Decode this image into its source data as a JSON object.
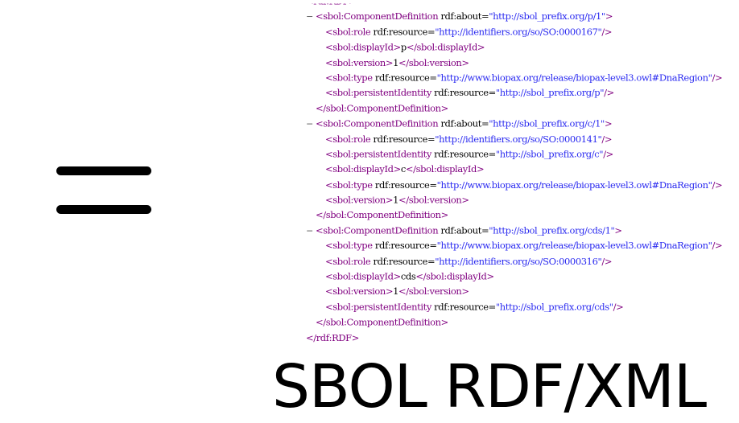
{
  "caption": "SBOL RDF/XML",
  "xml": {
    "toggle": "−",
    "rdf_open": "<rdf:RDF>",
    "rdf_close": "</rdf:RDF>",
    "cd_open_tag": "<sbol:ComponentDefinition",
    "cd_close": "</sbol:ComponentDefinition>",
    "components": [
      {
        "about": "http://sbol_prefix.org/p/1",
        "children": [
          {
            "tag": "sbol:role",
            "attr": "rdf:resource",
            "value": "http://identifiers.org/so/SO:0000167"
          },
          {
            "tag": "sbol:displayId",
            "text": "p"
          },
          {
            "tag": "sbol:version",
            "text": "1"
          },
          {
            "tag": "sbol:type",
            "attr": "rdf:resource",
            "value": "http://www.biopax.org/release/biopax-level3.owl#DnaRegion"
          },
          {
            "tag": "sbol:persistentIdentity",
            "attr": "rdf:resource",
            "value": "http://sbol_prefix.org/p"
          }
        ]
      },
      {
        "about": "http://sbol_prefix.org/c/1",
        "children": [
          {
            "tag": "sbol:role",
            "attr": "rdf:resource",
            "value": "http://identifiers.org/so/SO:0000141"
          },
          {
            "tag": "sbol:persistentIdentity",
            "attr": "rdf:resource",
            "value": "http://sbol_prefix.org/c"
          },
          {
            "tag": "sbol:displayId",
            "text": "c"
          },
          {
            "tag": "sbol:type",
            "attr": "rdf:resource",
            "value": "http://www.biopax.org/release/biopax-level3.owl#DnaRegion"
          },
          {
            "tag": "sbol:version",
            "text": "1"
          }
        ]
      },
      {
        "about": "http://sbol_prefix.org/cds/1",
        "children": [
          {
            "tag": "sbol:type",
            "attr": "rdf:resource",
            "value": "http://www.biopax.org/release/biopax-level3.owl#DnaRegion"
          },
          {
            "tag": "sbol:role",
            "attr": "rdf:resource",
            "value": "http://identifiers.org/so/SO:0000316"
          },
          {
            "tag": "sbol:displayId",
            "text": "cds"
          },
          {
            "tag": "sbol:version",
            "text": "1"
          },
          {
            "tag": "sbol:persistentIdentity",
            "attr": "rdf:resource",
            "value": "http://sbol_prefix.org/cds"
          }
        ]
      }
    ]
  },
  "colors": {
    "tag": "#800080",
    "attr": "#000000",
    "value": "#2a2af0",
    "text": "#000000"
  }
}
